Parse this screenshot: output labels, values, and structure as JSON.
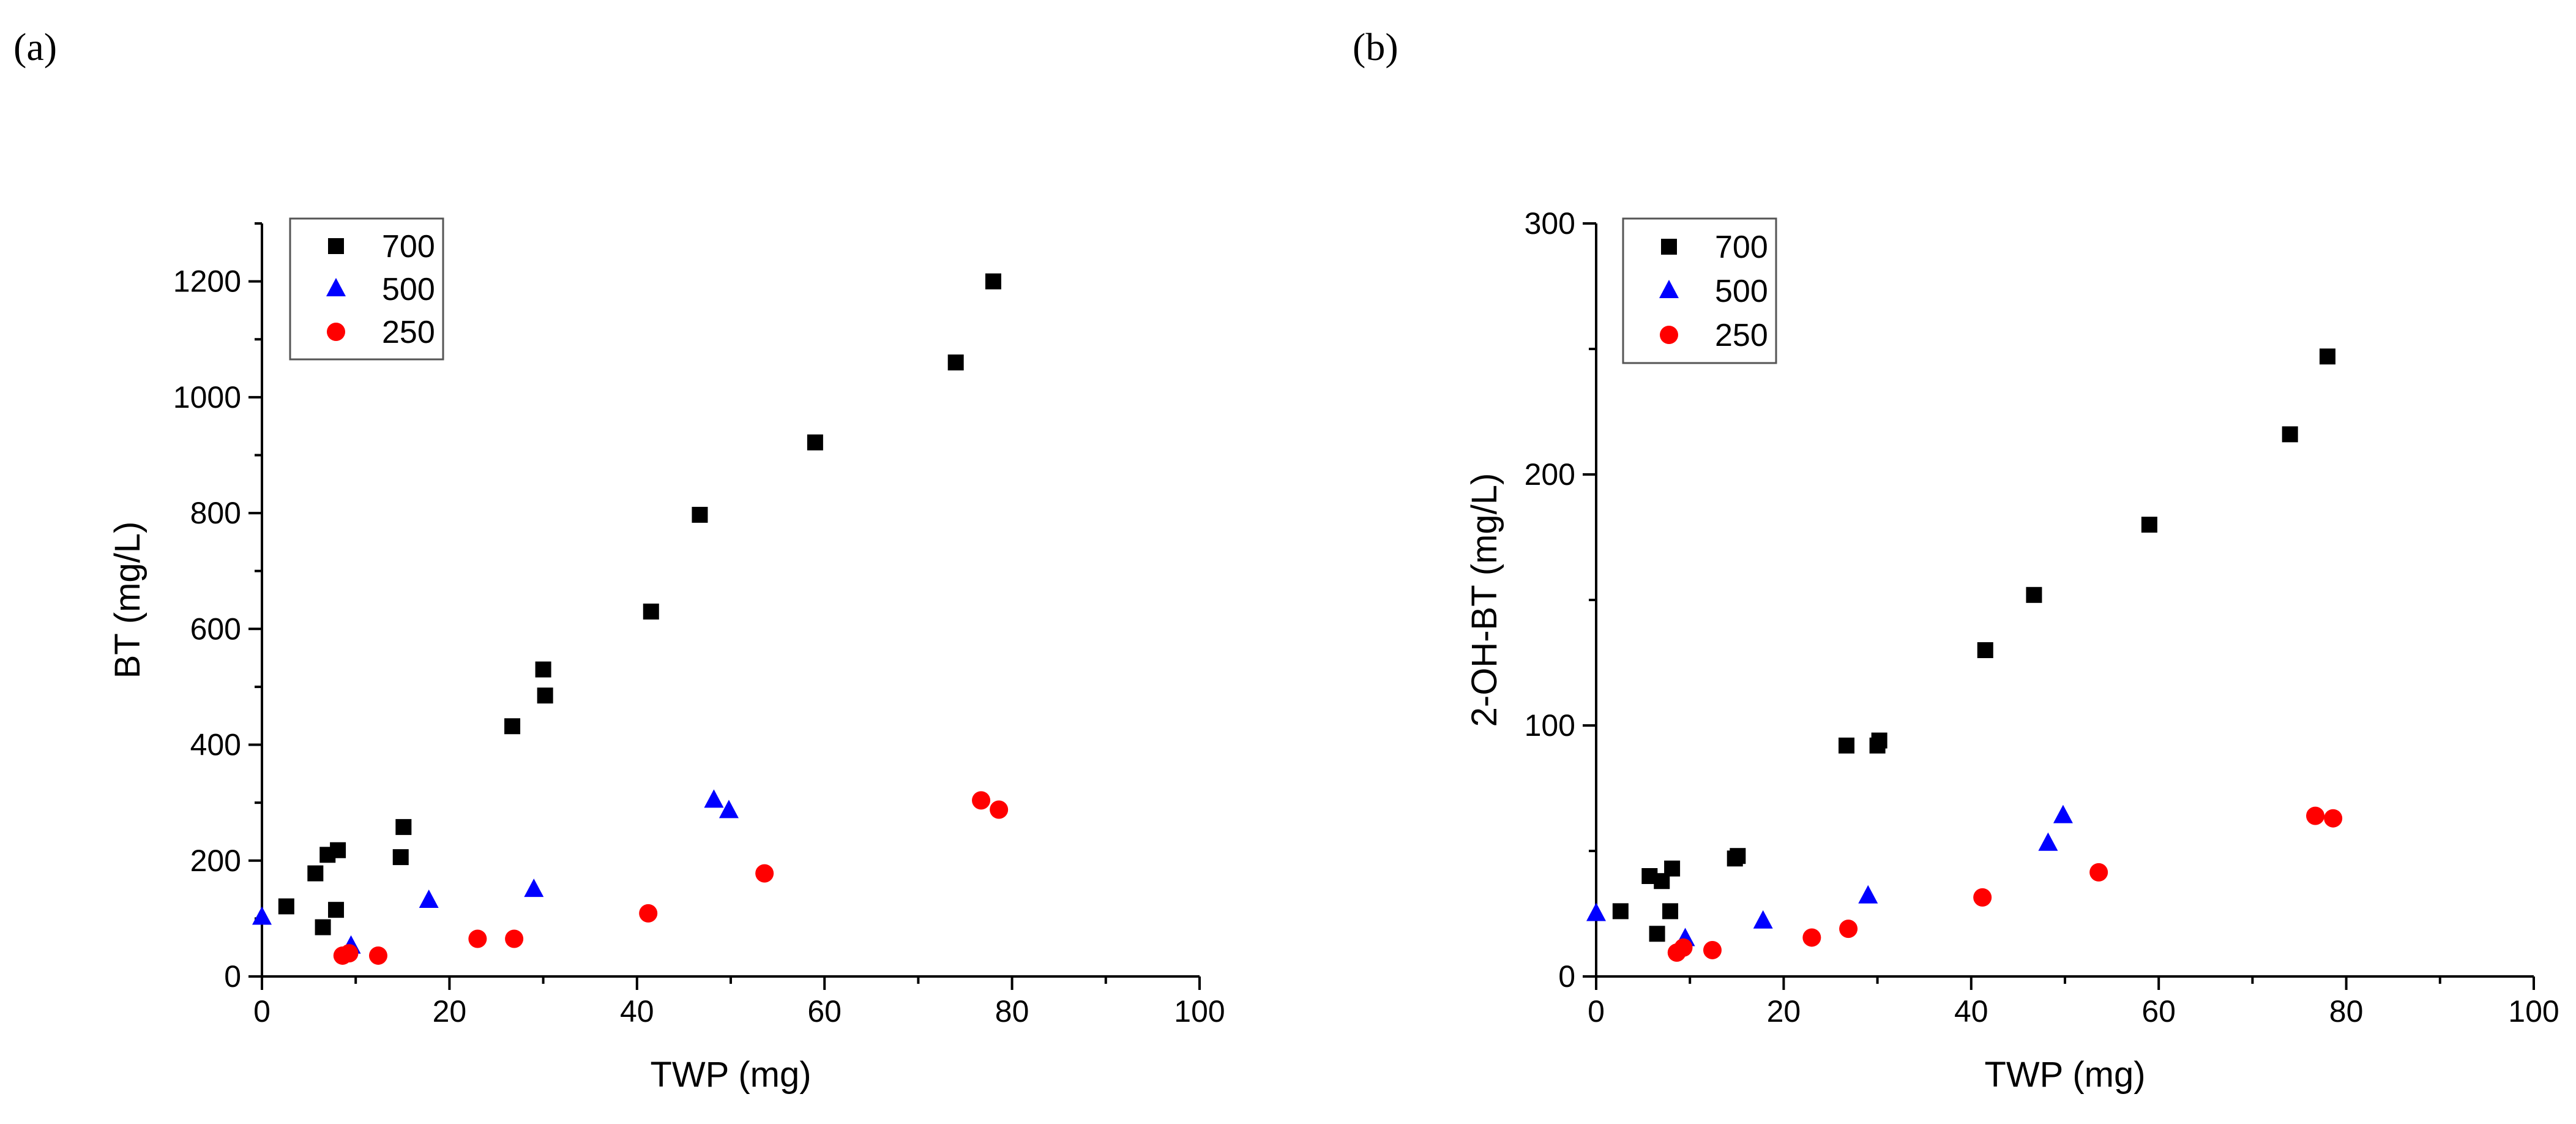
{
  "colors": {
    "700": "#000000",
    "500": "#0000ff",
    "250": "#ff0000",
    "axis": "#000000"
  },
  "chart_data": [
    {
      "panel_label": "(a)",
      "type": "scatter",
      "xlabel": "TWP (mg)",
      "ylabel": "BT (mg/L)",
      "xlim": [
        0,
        100
      ],
      "ylim": [
        0,
        1300
      ],
      "xticks": [
        0,
        20,
        40,
        60,
        80,
        100
      ],
      "yticks": [
        0,
        200,
        400,
        600,
        800,
        1000,
        1200
      ],
      "xminor": [
        10,
        30,
        50,
        70,
        90
      ],
      "yminor": [
        100,
        300,
        500,
        700,
        900,
        1100,
        1300
      ],
      "legend_position": "top-left",
      "series": [
        {
          "name": "700",
          "marker": "square",
          "color": "#000000",
          "x": [
            2.6,
            5.7,
            6.5,
            7,
            7.9,
            8.1,
            14.8,
            15.1,
            26.7,
            30,
            30.2,
            41.5,
            46.7,
            59,
            74,
            78
          ],
          "y": [
            121,
            178,
            85,
            210,
            115,
            218,
            206,
            258,
            432,
            530,
            485,
            630,
            797,
            922,
            1060,
            1200
          ]
        },
        {
          "name": "500",
          "marker": "triangle",
          "color": "#0000ff",
          "x": [
            0,
            9.5,
            17.8,
            29,
            48.2,
            49.8
          ],
          "y": [
            102,
            52,
            131,
            150,
            304,
            286
          ]
        },
        {
          "name": "250",
          "marker": "circle",
          "color": "#ff0000",
          "x": [
            8.6,
            9.3,
            12.4,
            23,
            26.9,
            41.2,
            53.6,
            76.7,
            78.6
          ],
          "y": [
            36,
            40,
            36,
            65,
            65,
            109,
            178,
            304,
            288
          ]
        }
      ]
    },
    {
      "panel_label": "(b)",
      "type": "scatter",
      "xlabel": "TWP (mg)",
      "ylabel": "2-OH-BT (mg/L)",
      "xlim": [
        0,
        100
      ],
      "ylim": [
        0,
        300
      ],
      "xticks": [
        0,
        20,
        40,
        60,
        80,
        100
      ],
      "yticks": [
        0,
        100,
        200,
        300
      ],
      "xminor": [
        10,
        30,
        50,
        70,
        90
      ],
      "yminor": [
        50,
        150,
        250
      ],
      "legend_position": "top-left",
      "series": [
        {
          "name": "700",
          "marker": "square",
          "color": "#000000",
          "x": [
            2.6,
            5.7,
            6.5,
            7,
            7.9,
            8.1,
            14.8,
            15.1,
            26.7,
            30,
            30.2,
            41.5,
            46.7,
            59,
            74,
            78
          ],
          "y": [
            26,
            40,
            17,
            38,
            26,
            43,
            47,
            48,
            92,
            92,
            94,
            130,
            152,
            180,
            216,
            247
          ]
        },
        {
          "name": "500",
          "marker": "triangle",
          "color": "#0000ff",
          "x": [
            0,
            9.5,
            17.8,
            29,
            48.2,
            49.8
          ],
          "y": [
            25,
            15,
            22,
            32,
            53,
            64
          ]
        },
        {
          "name": "250",
          "marker": "circle",
          "color": "#ff0000",
          "x": [
            8.6,
            9.3,
            12.4,
            23,
            26.9,
            41.2,
            53.6,
            76.7,
            78.6
          ],
          "y": [
            9.5,
            11.5,
            10.5,
            15.5,
            19,
            31.5,
            41.5,
            64,
            63
          ]
        }
      ]
    }
  ]
}
